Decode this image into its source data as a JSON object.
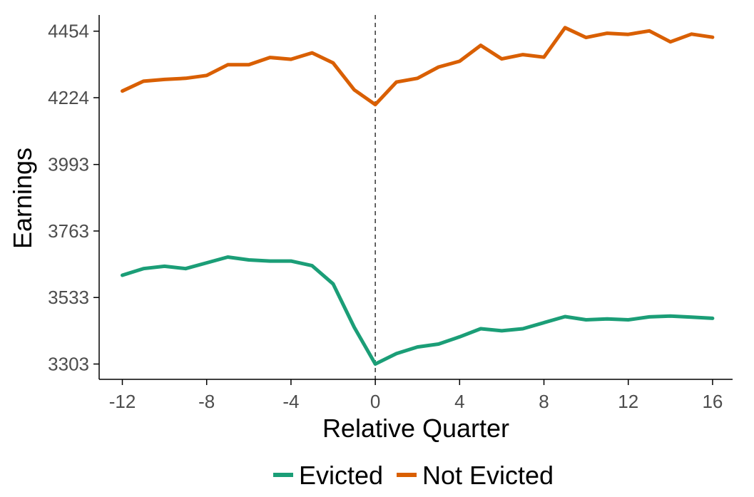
{
  "chart_data": {
    "type": "line",
    "xlabel": "Relative Quarter",
    "ylabel": "Earnings",
    "x": [
      -12,
      -11,
      -10,
      -9,
      -8,
      -7,
      -6,
      -5,
      -4,
      -3,
      -2,
      -1,
      0,
      1,
      2,
      3,
      4,
      5,
      6,
      7,
      8,
      9,
      10,
      11,
      12,
      13,
      14,
      15,
      16
    ],
    "xticks": [
      -12,
      -8,
      -4,
      0,
      4,
      8,
      12,
      16
    ],
    "xtick_labels": [
      "-12",
      "-8",
      "-4",
      "0",
      "4",
      "8",
      "12",
      "16"
    ],
    "yticks": [
      3303,
      3533,
      3763,
      3993,
      4224,
      4454
    ],
    "ytick_labels": [
      "3303",
      "3533",
      "3763",
      "3993",
      "4224",
      "4454"
    ],
    "xlim": [
      -13.1,
      16.95
    ],
    "ylim": [
      3250,
      4510
    ],
    "reference_line": {
      "x": 0,
      "style": "dashed"
    },
    "grid": false,
    "legend_position": "bottom",
    "series": [
      {
        "name": "Evicted",
        "color": "#1b9e77",
        "values": [
          3610,
          3633,
          3641,
          3633,
          3653,
          3673,
          3663,
          3659,
          3659,
          3643,
          3580,
          3430,
          3303,
          3339,
          3362,
          3372,
          3397,
          3425,
          3418,
          3425,
          3446,
          3467,
          3456,
          3459,
          3456,
          3466,
          3469,
          3465,
          3461
        ]
      },
      {
        "name": "Not Evicted",
        "color": "#d95f02",
        "values": [
          4247,
          4281,
          4287,
          4291,
          4301,
          4338,
          4338,
          4363,
          4357,
          4379,
          4344,
          4251,
          4200,
          4278,
          4291,
          4330,
          4350,
          4405,
          4358,
          4373,
          4364,
          4466,
          4432,
          4447,
          4443,
          4455,
          4417,
          4444,
          4433
        ]
      }
    ]
  }
}
